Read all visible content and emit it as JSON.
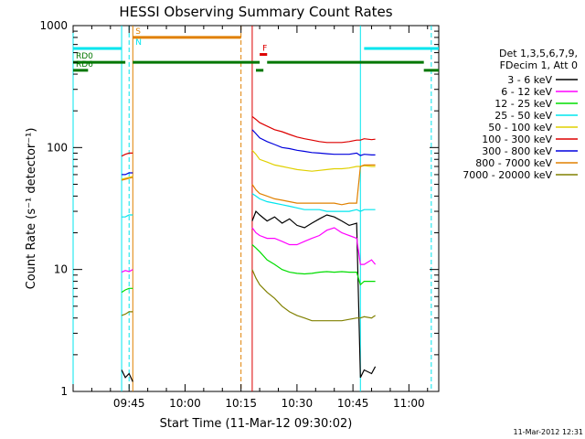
{
  "chart_data": {
    "type": "line",
    "title": "HESSI Observing Summary Count Rates",
    "xlabel": "Start Time (11-Mar-12 09:30:02)",
    "ylabel": "Count Rate (s⁻¹ detector⁻¹)",
    "yscale": "log",
    "ylim": [
      1,
      1000
    ],
    "xlim": [
      "09:30",
      "11:08"
    ],
    "x_ticks": [
      "09:45",
      "10:00",
      "10:15",
      "10:30",
      "10:45",
      "11:00"
    ],
    "y_ticks": [
      "1",
      "10",
      "100",
      "1000"
    ],
    "legend_header": [
      "Det 1,3,5,6,7,9,",
      "FDecim 1, Att 0"
    ],
    "legend_placement": "right",
    "series": [
      {
        "name": "3 - 6 keV",
        "color": "#000000",
        "x": [
          "09:43",
          "09:44",
          "09:45",
          "09:46",
          "10:18",
          "10:19",
          "10:20",
          "10:22",
          "10:24",
          "10:26",
          "10:28",
          "10:30",
          "10:32",
          "10:34",
          "10:36",
          "10:38",
          "10:40",
          "10:42",
          "10:44",
          "10:46",
          "10:47",
          "10:48",
          "10:50",
          "10:51"
        ],
        "values": [
          1.5,
          1.3,
          1.4,
          1.2,
          25,
          30,
          28,
          25,
          27,
          24,
          26,
          23,
          22,
          24,
          26,
          28,
          27,
          25,
          23,
          24,
          1.3,
          1.5,
          1.4,
          1.6
        ]
      },
      {
        "name": "6 - 12 keV",
        "color": "#ff00ff",
        "x": [
          "09:43",
          "09:44",
          "09:45",
          "09:46",
          "10:18",
          "10:19",
          "10:20",
          "10:22",
          "10:24",
          "10:26",
          "10:28",
          "10:30",
          "10:32",
          "10:34",
          "10:36",
          "10:38",
          "10:40",
          "10:42",
          "10:44",
          "10:46",
          "10:47",
          "10:48",
          "10:50",
          "10:51"
        ],
        "values": [
          9.5,
          9.8,
          9.6,
          10,
          22,
          20,
          19,
          18,
          18,
          17,
          16,
          16,
          17,
          18,
          19,
          21,
          22,
          20,
          19,
          18,
          11,
          11,
          12,
          11
        ]
      },
      {
        "name": "12 - 25 keV",
        "color": "#00dd00",
        "x": [
          "09:43",
          "09:44",
          "09:45",
          "09:46",
          "10:18",
          "10:19",
          "10:20",
          "10:22",
          "10:24",
          "10:26",
          "10:28",
          "10:30",
          "10:32",
          "10:34",
          "10:36",
          "10:38",
          "10:40",
          "10:42",
          "10:44",
          "10:46",
          "10:47",
          "10:48",
          "10:50",
          "10:51"
        ],
        "values": [
          6.5,
          6.8,
          7,
          7,
          16,
          15,
          14,
          12,
          11,
          10,
          9.5,
          9.3,
          9.2,
          9.3,
          9.5,
          9.6,
          9.5,
          9.6,
          9.5,
          9.5,
          7.5,
          8,
          8,
          8
        ]
      },
      {
        "name": "25 - 50 keV",
        "color": "#00e5ee",
        "x": [
          "09:43",
          "09:44",
          "09:45",
          "09:46",
          "10:18",
          "10:19",
          "10:20",
          "10:22",
          "10:24",
          "10:26",
          "10:28",
          "10:30",
          "10:32",
          "10:34",
          "10:36",
          "10:38",
          "10:40",
          "10:42",
          "10:44",
          "10:46",
          "10:47",
          "10:48",
          "10:50",
          "10:51"
        ],
        "values": [
          27,
          27,
          28,
          28,
          42,
          40,
          38,
          36,
          35,
          34,
          33,
          32,
          31,
          31,
          31,
          30,
          30,
          30,
          30,
          31,
          30,
          31,
          31,
          31
        ]
      },
      {
        "name": "50 - 100 keV",
        "color": "#e0d000",
        "x": [
          "09:43",
          "09:44",
          "09:45",
          "09:46",
          "10:18",
          "10:19",
          "10:20",
          "10:22",
          "10:24",
          "10:26",
          "10:28",
          "10:30",
          "10:32",
          "10:34",
          "10:36",
          "10:38",
          "10:40",
          "10:42",
          "10:44",
          "10:46",
          "10:47",
          "10:48",
          "10:50",
          "10:51"
        ],
        "values": [
          55,
          56,
          57,
          58,
          95,
          88,
          80,
          76,
          72,
          70,
          68,
          66,
          65,
          64,
          65,
          66,
          67,
          67,
          68,
          70,
          70,
          71,
          70,
          70
        ]
      },
      {
        "name": "100 - 300 keV",
        "color": "#dd0000",
        "x": [
          "09:43",
          "09:44",
          "09:45",
          "09:46",
          "10:18",
          "10:19",
          "10:20",
          "10:22",
          "10:24",
          "10:26",
          "10:28",
          "10:30",
          "10:32",
          "10:34",
          "10:36",
          "10:38",
          "10:40",
          "10:42",
          "10:44",
          "10:46",
          "10:47",
          "10:48",
          "10:50",
          "10:51"
        ],
        "values": [
          85,
          88,
          90,
          90,
          180,
          170,
          160,
          150,
          140,
          135,
          128,
          122,
          118,
          115,
          112,
          110,
          110,
          110,
          112,
          115,
          115,
          118,
          116,
          117
        ]
      },
      {
        "name": "300 - 800 keV",
        "color": "#0000dd",
        "x": [
          "09:43",
          "09:44",
          "09:45",
          "09:46",
          "10:18",
          "10:19",
          "10:20",
          "10:22",
          "10:24",
          "10:26",
          "10:28",
          "10:30",
          "10:32",
          "10:34",
          "10:36",
          "10:38",
          "10:40",
          "10:42",
          "10:44",
          "10:46",
          "10:47",
          "10:48",
          "10:50",
          "10:51"
        ],
        "values": [
          60,
          60,
          62,
          62,
          140,
          130,
          120,
          112,
          106,
          100,
          98,
          95,
          93,
          91,
          90,
          89,
          88,
          88,
          88,
          90,
          86,
          88,
          87,
          87
        ]
      },
      {
        "name": "800 - 7000 keV",
        "color": "#e08000",
        "x": [
          "09:43",
          "09:44",
          "09:45",
          "09:46",
          "10:18",
          "10:19",
          "10:20",
          "10:22",
          "10:24",
          "10:26",
          "10:28",
          "10:30",
          "10:32",
          "10:34",
          "10:36",
          "10:38",
          "10:40",
          "10:42",
          "10:44",
          "10:46",
          "10:47",
          "10:48",
          "10:50",
          "10:51"
        ],
        "values": [
          54,
          55,
          56,
          57,
          50,
          45,
          42,
          40,
          38,
          37,
          36,
          35,
          35,
          35,
          35,
          35,
          35,
          34,
          35,
          35,
          70,
          72,
          72,
          72
        ]
      },
      {
        "name": "7000 - 20000 keV",
        "color": "#808000",
        "x": [
          "09:43",
          "09:44",
          "09:45",
          "09:46",
          "10:18",
          "10:19",
          "10:20",
          "10:22",
          "10:24",
          "10:26",
          "10:28",
          "10:30",
          "10:32",
          "10:34",
          "10:36",
          "10:38",
          "10:40",
          "10:42",
          "10:44",
          "10:46",
          "10:47",
          "10:48",
          "10:50",
          "10:51"
        ],
        "values": [
          4.2,
          4.3,
          4.5,
          4.5,
          10,
          8.5,
          7.5,
          6.5,
          5.8,
          5,
          4.5,
          4.2,
          4,
          3.8,
          3.8,
          3.8,
          3.8,
          3.8,
          3.9,
          4,
          4,
          4.1,
          4,
          4.2
        ]
      }
    ],
    "flags": [
      {
        "label": "S",
        "color": "#e08000",
        "value": 800,
        "start": "09:46",
        "end": "10:15"
      },
      {
        "label": "N",
        "color": "#00e5ee",
        "value": 650,
        "start": "09:30",
        "end": "09:43",
        "label_at": "09:46"
      },
      {
        "label": "N",
        "color": "#00e5ee",
        "value": 650,
        "start": "10:48",
        "end": "11:08",
        "show_label": false
      },
      {
        "label": "F",
        "color": "#dd0000",
        "value": 580,
        "start": "10:20",
        "end": "10:22"
      },
      {
        "label": "RD0",
        "color": "#007700",
        "value": 500,
        "start": "09:30",
        "end": "09:44"
      },
      {
        "label": "RD0",
        "color": "#007700",
        "value": 500,
        "start": "09:46",
        "end": "10:18",
        "show_label": false
      },
      {
        "label": "RD0",
        "color": "#007700",
        "value": 500,
        "start": "10:18",
        "end": "10:20",
        "show_label": false
      },
      {
        "label": "RD0",
        "color": "#007700",
        "value": 500,
        "start": "10:22",
        "end": "11:04",
        "show_label": false
      },
      {
        "label": "RD6",
        "color": "#007700",
        "value": 430,
        "start": "09:30",
        "end": "09:34"
      },
      {
        "label": "RD6",
        "color": "#007700",
        "value": 430,
        "start": "10:19",
        "end": "10:21",
        "show_label": false
      },
      {
        "label": "RD6",
        "color": "#007700",
        "value": 430,
        "start": "11:04",
        "end": "11:08",
        "show_label": false
      }
    ],
    "vlines": [
      {
        "x": "09:30",
        "color": "#00e5ee",
        "style": "solid"
      },
      {
        "x": "09:43",
        "color": "#00e5ee",
        "style": "solid"
      },
      {
        "x": "09:45",
        "color": "#00e5ee",
        "style": "dashed"
      },
      {
        "x": "09:46",
        "color": "#e08000",
        "style": "solid"
      },
      {
        "x": "10:15",
        "color": "#e08000",
        "style": "dashed"
      },
      {
        "x": "10:18",
        "color": "#dd0000",
        "style": "solid"
      },
      {
        "x": "10:47",
        "color": "#00e5ee",
        "style": "solid"
      },
      {
        "x": "11:06",
        "color": "#00e5ee",
        "style": "dashed"
      }
    ],
    "timestamp": "11-Mar-2012 12:31"
  }
}
